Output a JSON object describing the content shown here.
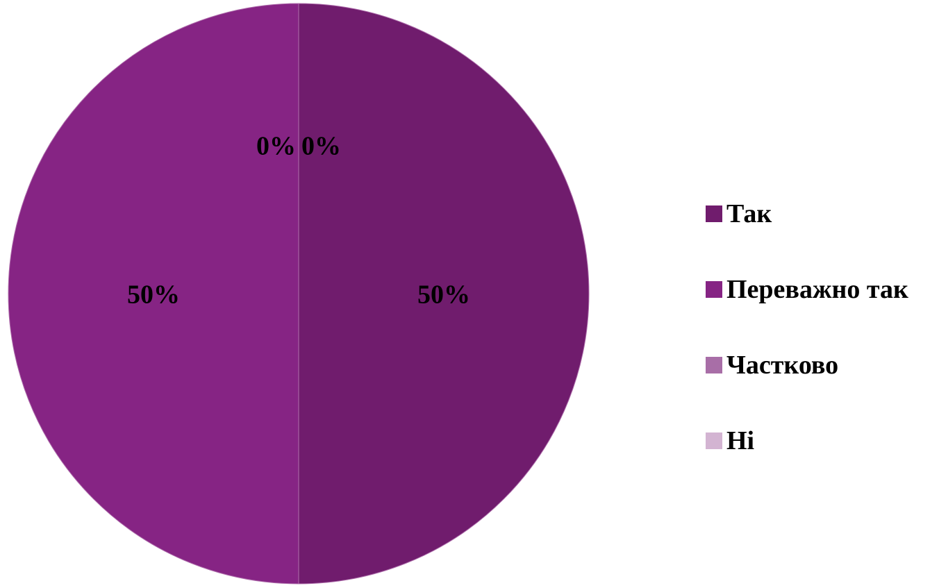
{
  "chart_data": {
    "type": "pie",
    "title": "",
    "legend_position": "right",
    "slices": [
      {
        "label": "Так",
        "value": 50,
        "data_label": "50%",
        "color": "#701c6d"
      },
      {
        "label": "Переважно так",
        "value": 50,
        "data_label": "50%",
        "color": "#862484"
      },
      {
        "label": "Частково",
        "value": 0,
        "data_label": "0%",
        "color": "#a86ea7"
      },
      {
        "label": "Ні",
        "value": 0,
        "data_label": "0%",
        "color": "#d3b4d2"
      }
    ]
  }
}
